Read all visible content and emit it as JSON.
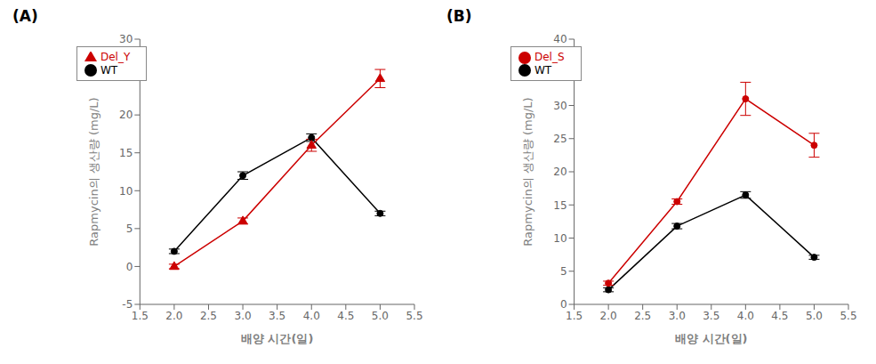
{
  "chart_data": [
    {
      "type": "line",
      "title": "(A)",
      "xlabel": "배양 시간(일)",
      "ylabel": "Rapmycin의 생산량 (mg/L)",
      "x": [
        2,
        3,
        4,
        5
      ],
      "series": [
        {
          "name": "WT",
          "color": "#000000",
          "marker": "circle",
          "values": [
            2.0,
            12.0,
            17.0,
            7.0
          ],
          "yerr": [
            0.3,
            0.5,
            0.5,
            0.3
          ]
        },
        {
          "name": "Del_Y",
          "color": "#CC0000",
          "marker": "triangle",
          "values": [
            0.0,
            6.0,
            16.0,
            24.8
          ],
          "yerr": [
            0.3,
            0.4,
            0.8,
            1.2
          ]
        }
      ],
      "xlim": [
        1.5,
        5.5
      ],
      "xticks": [
        1.5,
        {
          "value": 2,
          "label": "2.0"
        },
        2.5,
        {
          "value": 3,
          "label": "3.0"
        },
        3.5,
        {
          "value": 4,
          "label": "4.0"
        },
        4.5,
        {
          "value": 5,
          "label": "5.0"
        },
        5.5
      ],
      "ylim": [
        -5,
        30
      ],
      "yticks": [
        -5,
        0,
        5,
        10,
        15,
        20,
        25,
        30
      ],
      "legend": "upper left",
      "grid": false
    },
    {
      "type": "line",
      "title": "(B)",
      "xlabel": "배양 시간(일)",
      "ylabel": "Rapmycin의 생산량 (mg/L)",
      "x": [
        2,
        3,
        4,
        5
      ],
      "series": [
        {
          "name": "WT",
          "color": "#000000",
          "marker": "circle",
          "values": [
            2.2,
            11.8,
            16.5,
            7.1
          ],
          "yerr": [
            0.3,
            0.4,
            0.5,
            0.3
          ]
        },
        {
          "name": "Del_S",
          "color": "#CC0000",
          "marker": "circle",
          "values": [
            3.2,
            15.5,
            31.0,
            24.0
          ],
          "yerr": [
            0.3,
            0.4,
            2.5,
            1.8
          ]
        }
      ],
      "xlim": [
        1.5,
        5.5
      ],
      "xticks": [
        1.5,
        {
          "value": 2,
          "label": "2.0"
        },
        2.5,
        {
          "value": 3,
          "label": "3.0"
        },
        3.5,
        {
          "value": 4,
          "label": "4.0"
        },
        4.5,
        {
          "value": 5,
          "label": "5.0"
        },
        5.5
      ],
      "ylim": [
        0,
        40
      ],
      "yticks": [
        0,
        5,
        10,
        15,
        20,
        25,
        30,
        35,
        40
      ],
      "legend": "upper left",
      "grid": false
    }
  ]
}
